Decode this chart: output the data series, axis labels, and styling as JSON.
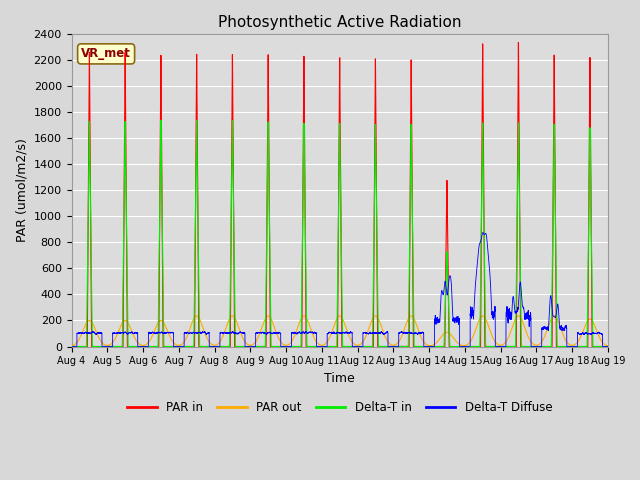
{
  "title": "Photosynthetic Active Radiation",
  "ylabel": "PAR (umol/m2/s)",
  "xlabel": "Time",
  "ylim": [
    0,
    2400
  ],
  "yticks": [
    0,
    200,
    400,
    600,
    800,
    1000,
    1200,
    1400,
    1600,
    1800,
    2000,
    2200,
    2400
  ],
  "xtick_labels": [
    "Aug 4",
    "Aug 5",
    "Aug 6",
    "Aug 7",
    "Aug 8",
    "Aug 9",
    "Aug 10",
    "Aug 11",
    "Aug 12",
    "Aug 13",
    "Aug 14",
    "Aug 15",
    "Aug 16",
    "Aug 17",
    "Aug 18",
    "Aug 19"
  ],
  "colors": {
    "PAR_in": "#ff0000",
    "PAR_out": "#ffaa00",
    "Delta_T_in": "#00ee00",
    "Delta_T_Diffuse": "#0000ff"
  },
  "legend_labels": [
    "PAR in",
    "PAR out",
    "Delta-T in",
    "Delta-T Diffuse"
  ],
  "annotation_text": "VR_met",
  "background_color": "#dcdcdc",
  "grid_color": "#ffffff",
  "fig_background": "#d8d8d8",
  "title_fontsize": 11,
  "axis_fontsize": 9,
  "tick_fontsize": 8
}
